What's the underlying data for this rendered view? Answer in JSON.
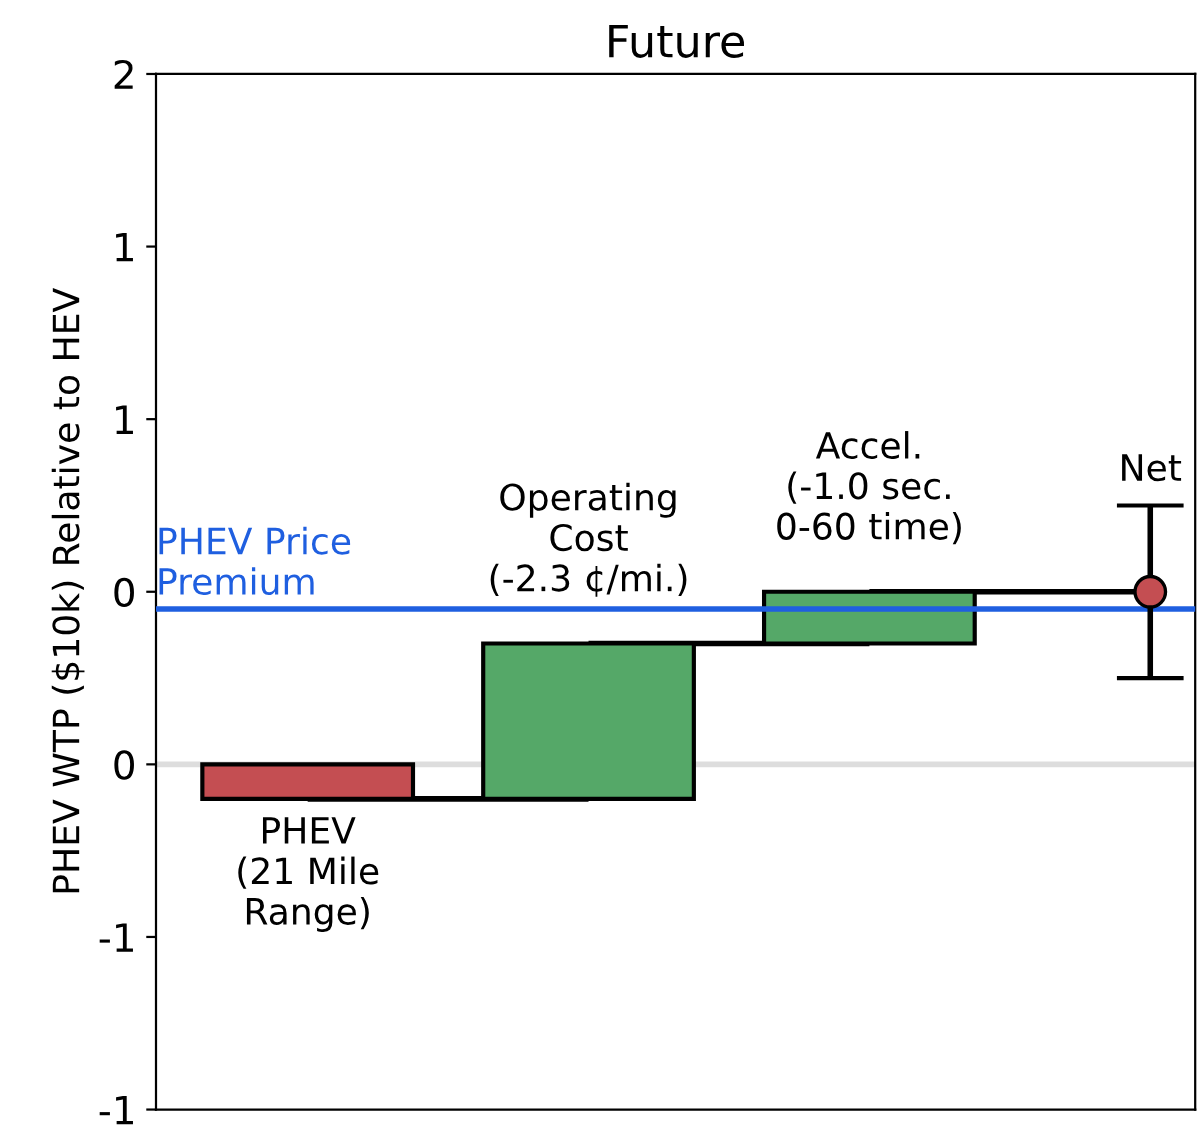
{
  "chart_data": {
    "type": "bar",
    "title": "Future",
    "ylabel": "PHEV WTP ($10k) Relative to HEV",
    "categories": [
      "PHEV\n(21 Mile\nRange)",
      "Operating\nCost\n(-2.3 ¢/mi.)",
      "Accel.\n(-1.0 sec.\n0-60 time)",
      "Net"
    ],
    "series": [
      {
        "values": [
          -0.1,
          0.45,
          0.15,
          null
        ],
        "base": [
          0,
          -0.1,
          0.35,
          null
        ],
        "colors": [
          "#c44e52",
          "#55a868",
          "#55a868",
          null
        ]
      },
      {
        "type": "scatter",
        "color": "#c44e52",
        "values": [
          null,
          null,
          null,
          0.5
        ],
        "errors": [
          null,
          null,
          null,
          0.25
        ],
        "marker": "circle"
      }
    ],
    "ylim": [
      -1,
      2
    ],
    "yticks": [
      {
        "value": 2,
        "label": "2"
      },
      {
        "value": 1.5,
        "label": "1"
      },
      {
        "value": 1,
        "label": "1"
      },
      {
        "value": 0.5,
        "label": "0"
      },
      {
        "value": 0,
        "label": "0"
      },
      {
        "value": -0.5,
        "label": "-1"
      },
      {
        "value": -1,
        "label": "-1"
      }
    ],
    "ref_lines": [
      {
        "axis": "y",
        "value": 0,
        "color": "#dddddd"
      },
      {
        "axis": "y",
        "value": 0.45,
        "color": "#1f5fe0",
        "label": "PHEV Price\nPremium"
      }
    ],
    "tick_labels": "y",
    "grid": false,
    "legend": false
  }
}
